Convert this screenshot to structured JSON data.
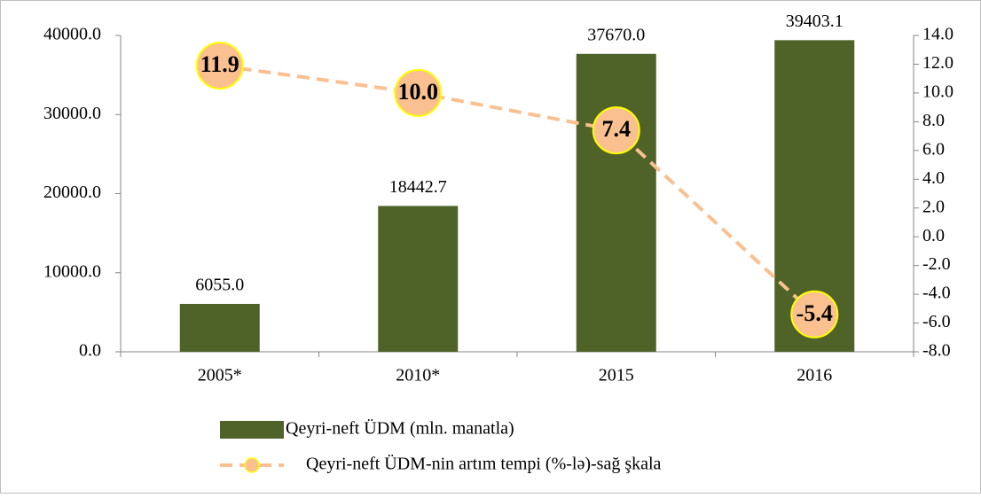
{
  "chart_data": {
    "type": "bar",
    "categories": [
      "2005*",
      "2010*",
      "2015",
      "2016"
    ],
    "series": [
      {
        "name": "Qeyri-neft ÜDM (mln. manatla)",
        "type": "bar",
        "color": "#4f6228",
        "values": [
          6055.0,
          18442.7,
          37670.0,
          39403.1
        ],
        "value_labels": [
          "6055.0",
          "18442.7",
          "37670.0",
          "39403.1"
        ]
      },
      {
        "name": "Qeyri-neft ÜDM-nin artım tempi (%-lə)-sağ şkala",
        "type": "line",
        "axis": "y2",
        "color": "#fac090",
        "marker_edge": "#ffff00",
        "values": [
          11.9,
          10.0,
          7.4,
          -5.4
        ],
        "value_labels": [
          "11.9",
          "10.0",
          "7.4",
          "-5.4"
        ]
      }
    ],
    "ylim": [
      0,
      40000
    ],
    "yticks": [
      {
        "value": 0,
        "label": "0.0"
      },
      {
        "value": 10000,
        "label": "10000.0"
      },
      {
        "value": 20000,
        "label": "20000.0"
      },
      {
        "value": 30000,
        "label": "30000.0"
      },
      {
        "value": 40000,
        "label": "40000.0"
      }
    ],
    "y2lim": [
      -8,
      14
    ],
    "y2ticks": [
      {
        "value": -8,
        "label": "-8.0"
      },
      {
        "value": -6,
        "label": "-6.0"
      },
      {
        "value": -4,
        "label": "-4.0"
      },
      {
        "value": -2,
        "label": "-2.0"
      },
      {
        "value": 0,
        "label": "0.0"
      },
      {
        "value": 2,
        "label": "2.0"
      },
      {
        "value": 4,
        "label": "4.0"
      },
      {
        "value": 6,
        "label": "6.0"
      },
      {
        "value": 8,
        "label": "8.0"
      },
      {
        "value": 10,
        "label": "10.0"
      },
      {
        "value": 12,
        "label": "12.0"
      },
      {
        "value": 14,
        "label": "14.0"
      }
    ],
    "grid": false,
    "legend": "bottom"
  }
}
